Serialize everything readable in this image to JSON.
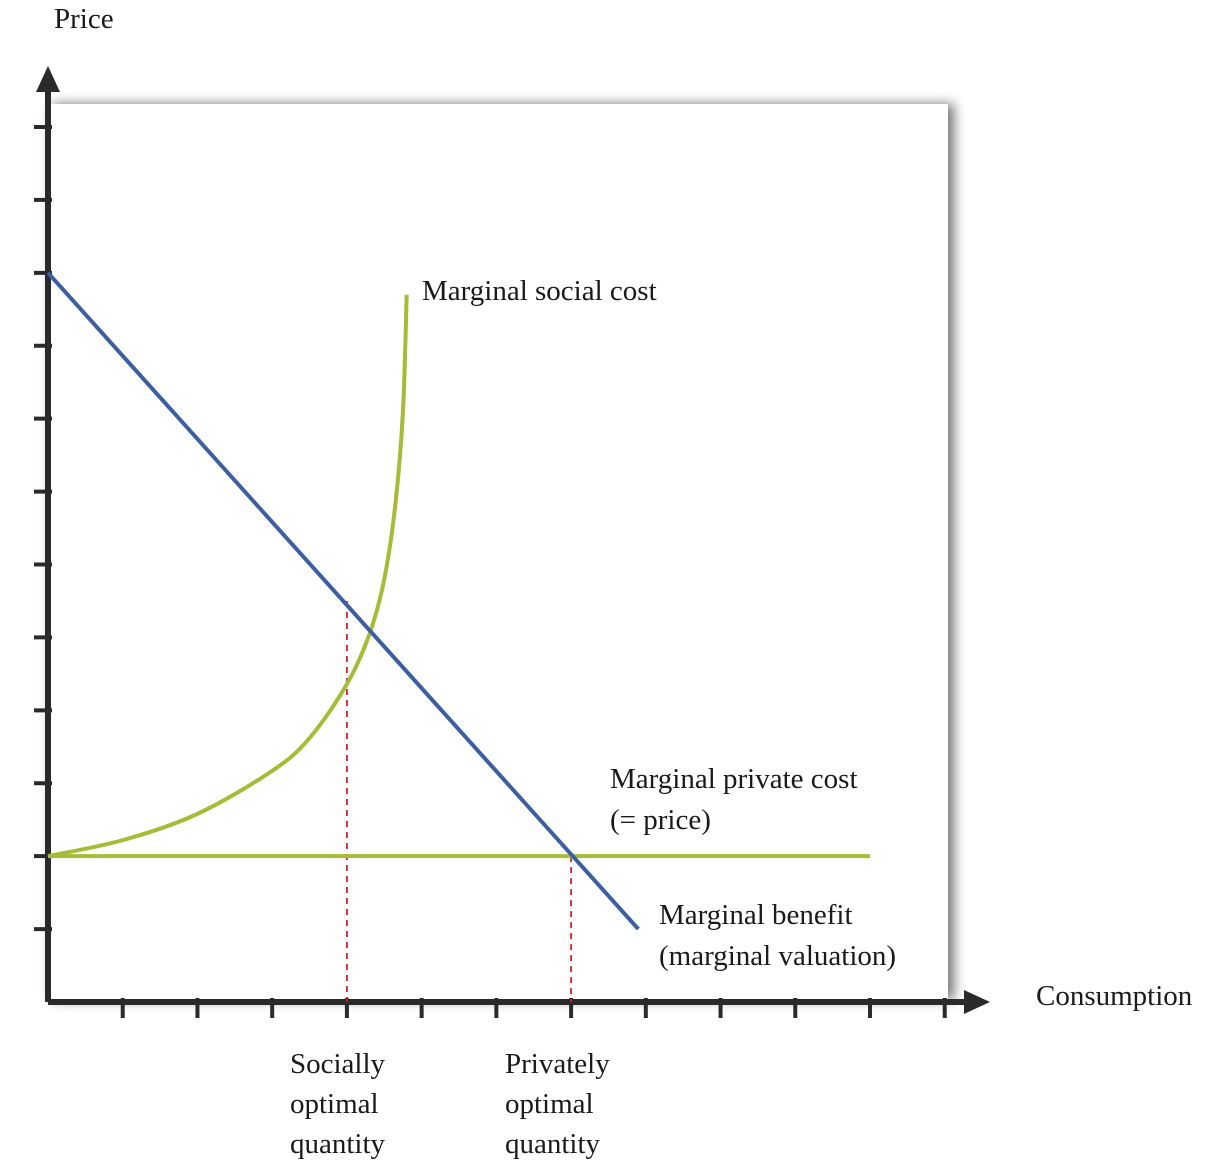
{
  "chart_data": {
    "type": "line",
    "title": "",
    "xlabel": "Consumption",
    "ylabel": "Price",
    "xlim": [
      0,
      12
    ],
    "ylim": [
      0,
      12.5
    ],
    "x_tick_count": 12,
    "y_tick_count": 12,
    "grid": false,
    "series": [
      {
        "name": "Marginal social cost",
        "color": "#a6bc36",
        "points": [
          [
            0,
            2
          ],
          [
            1,
            2.22
          ],
          [
            2,
            2.58
          ],
          [
            3,
            3.17
          ],
          [
            3.5,
            3.62
          ],
          [
            4,
            4.36
          ],
          [
            4.3,
            5.04
          ],
          [
            4.5,
            5.8
          ],
          [
            4.65,
            6.84
          ],
          [
            4.75,
            8.1
          ],
          [
            4.8,
            9.7
          ]
        ]
      },
      {
        "name": "Marginal private cost\n(= price)",
        "color": "#a6bc36",
        "points": [
          [
            0,
            2
          ],
          [
            11,
            2
          ]
        ]
      },
      {
        "name": "Marginal benefit\n(marginal valuation)",
        "color": "#3c5fa0",
        "points": [
          [
            0,
            10
          ],
          [
            7.9,
            1
          ]
        ]
      }
    ],
    "markers": [
      {
        "label": "Socially\noptimal\nquantity",
        "x": 4,
        "y": 5.5,
        "color": "#d7222a"
      },
      {
        "label": "Privately\noptimal\nquantity",
        "x": 7,
        "y": 2,
        "color": "#d7222a"
      }
    ]
  }
}
